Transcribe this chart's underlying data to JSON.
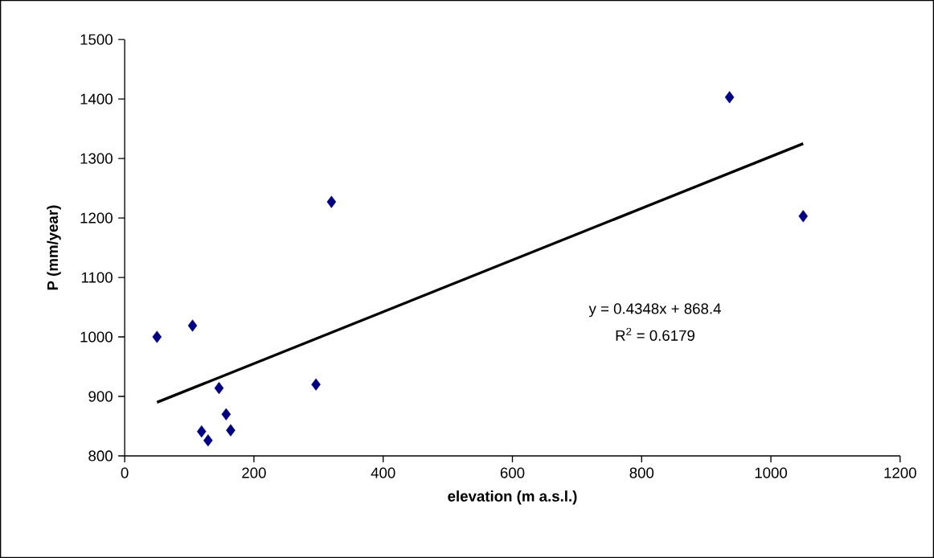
{
  "chart_data": {
    "type": "scatter",
    "xlabel": "elevation (m a.s.l.)",
    "ylabel": "P (mm/year)",
    "xlim": [
      0,
      1200
    ],
    "xticks": [
      0,
      200,
      400,
      600,
      800,
      1000,
      1200
    ],
    "ylim": [
      800,
      1500
    ],
    "yticks": [
      800,
      900,
      1000,
      1100,
      1200,
      1300,
      1400,
      1500
    ],
    "marker": "diamond",
    "series": [
      {
        "color": "#000080",
        "x": [
          50,
          105,
          146,
          296,
          157,
          119,
          129,
          164,
          936,
          1050,
          320
        ],
        "values": [
          1000,
          1019,
          914,
          920,
          870,
          841,
          826,
          843,
          1403,
          1203,
          1227
        ]
      },
      {
        "type": "line",
        "color": "#000000",
        "marker": "none",
        "x": [
          50,
          1050
        ],
        "values": [
          890,
          1325
        ]
      }
    ],
    "annotations": [
      "y = 0.4348x + 868.4",
      "R$^{2}$ = 0.6179"
    ]
  }
}
